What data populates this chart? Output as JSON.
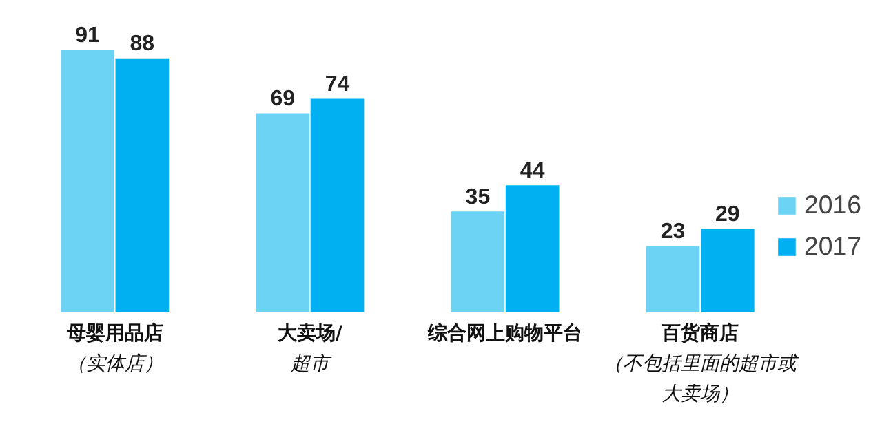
{
  "chart_data": {
    "type": "bar",
    "categories": [
      "母婴用品店（实体店）",
      "大卖场/超市",
      "综合网上购物平台",
      "百货商店（不包括里面的超市或大卖场）"
    ],
    "series": [
      {
        "name": "2016",
        "color": "#6dd3f5",
        "values": [
          91,
          69,
          35,
          23
        ]
      },
      {
        "name": "2017",
        "color": "#00b0f0",
        "values": [
          88,
          74,
          44,
          29
        ]
      }
    ],
    "data_labels": true,
    "legend": "right",
    "grid": false
  }
}
